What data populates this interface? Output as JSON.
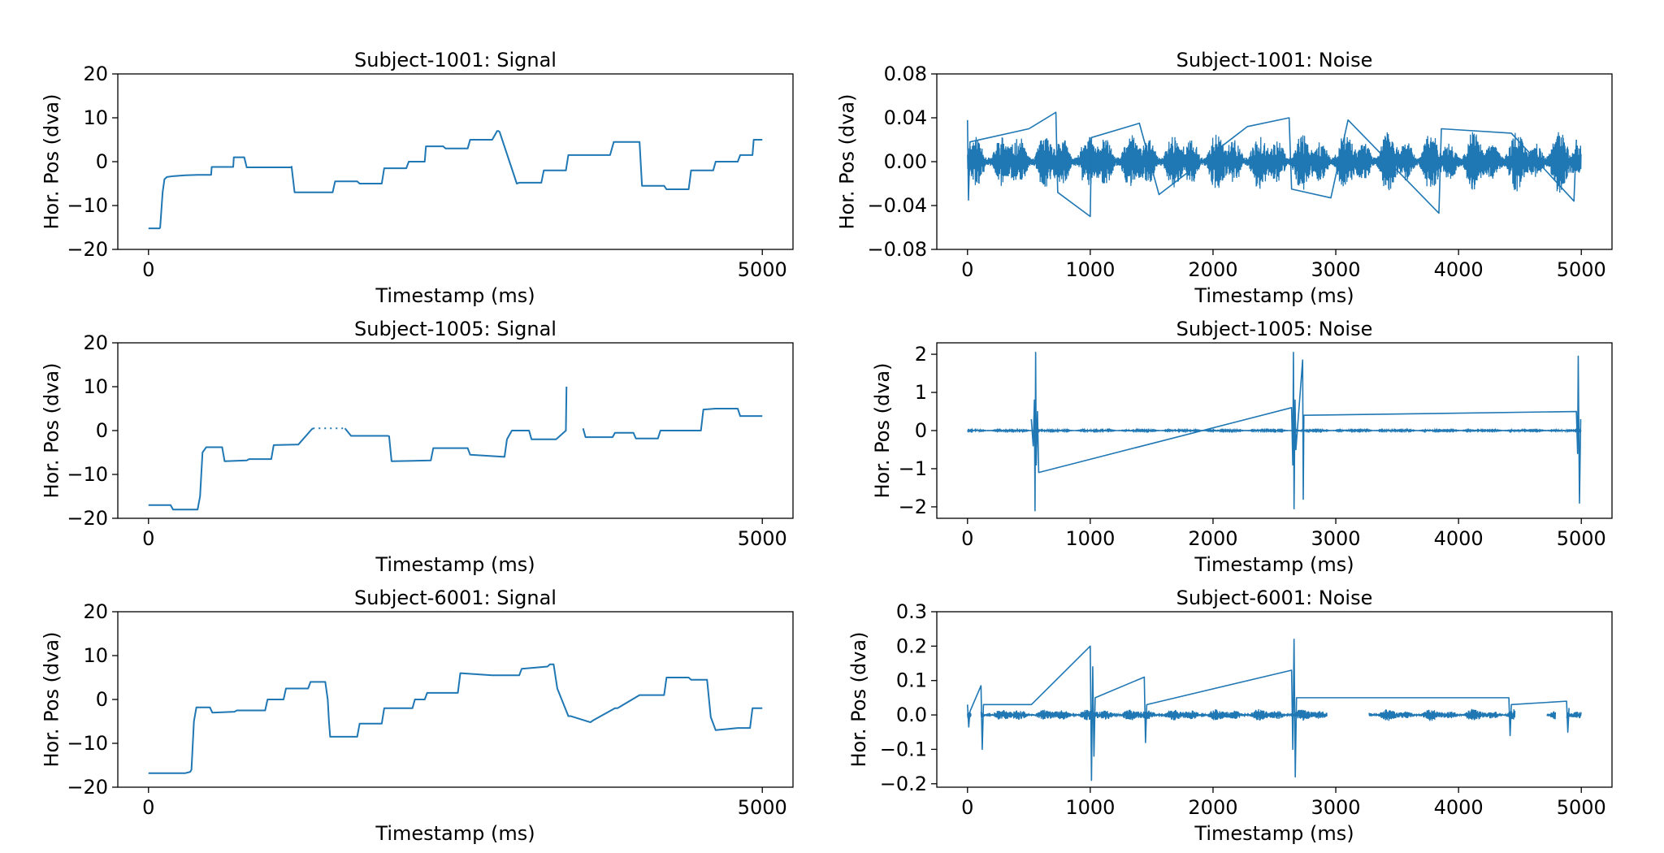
{
  "chart_data": [
    {
      "type": "line",
      "title": "Subject-1001: Signal",
      "xlabel": "Timestamp (ms)",
      "ylabel": "Hor. Pos (dva)",
      "xlim": [
        -250,
        5250
      ],
      "ylim": [
        -20,
        20
      ],
      "xticks": [
        0,
        5000
      ],
      "yticks": [
        -20,
        -10,
        0,
        10,
        20
      ],
      "yticklabels": [
        "−20",
        "−10",
        "0",
        "10",
        "20"
      ],
      "color": "#1f77b4",
      "grid": false,
      "series": [
        {
          "name": "signal",
          "x": [
            0,
            90,
            95,
            115,
            130,
            150,
            200,
            300,
            400,
            510,
            515,
            600,
            690,
            695,
            780,
            800,
            810,
            1165
          ],
          "y": [
            -15.2,
            -15.2,
            -15,
            -7,
            -4,
            -3.5,
            -3.3,
            -3.1,
            -3.0,
            -3.0,
            -1.2,
            -1.2,
            -1.2,
            1.0,
            1.0,
            -1.3,
            -1.3,
            -1.3
          ]
        },
        {
          "name": "signal",
          "x": [
            1165,
            1190,
            1500,
            1520,
            1700,
            1720,
            1900,
            1920,
            2100,
            2120,
            2250,
            2260,
            2400,
            2420,
            2600,
            2620,
            2800,
            2840,
            2850,
            2860,
            3000,
            3020,
            3200,
            3220,
            3400,
            3420,
            3760,
            3790,
            3800,
            4000,
            4020,
            4200,
            4220,
            4400,
            4420,
            4600,
            4620,
            4800,
            4820,
            4920,
            4930,
            5000
          ],
          "y": [
            -1,
            -7,
            -7,
            -4.5,
            -4.5,
            -5,
            -5,
            -1.5,
            -1.5,
            0,
            0,
            3.5,
            3.5,
            3,
            3,
            5,
            5,
            7,
            7,
            6.8,
            -5,
            -4.8,
            -4.8,
            -2,
            -2,
            1.5,
            1.5,
            4.5,
            4.5,
            4.5,
            -5.5,
            -5.5,
            -6.3,
            -6.3,
            -2,
            -2,
            0,
            0,
            1.5,
            1.5,
            5,
            5
          ]
        }
      ]
    },
    {
      "type": "line",
      "title": "Subject-1001: Noise",
      "xlabel": "Timestamp (ms)",
      "ylabel": "Hor. Pos (dva)",
      "xlim": [
        -250,
        5250
      ],
      "ylim": [
        -0.08,
        0.08
      ],
      "xticks": [
        0,
        1000,
        2000,
        3000,
        4000,
        5000
      ],
      "yticks": [
        -0.08,
        -0.04,
        0.0,
        0.04,
        0.08
      ],
      "yticklabels": [
        "−0.08",
        "−0.04",
        "0.00",
        "0.04",
        "0.08"
      ],
      "color": "#1f77b4",
      "grid": false,
      "noise": {
        "x_start": 0,
        "x_end": 5000,
        "base_amplitude": 0.011,
        "seed": 11
      },
      "series": [
        {
          "name": "noise spikes",
          "x": [
            0,
            8,
            20,
            500,
            720,
            735,
            1000,
            1010,
            1400,
            1560,
            2280,
            2620,
            2640,
            2960,
            3100,
            3840,
            3860,
            4430,
            4940,
            4960
          ],
          "y": [
            0.038,
            -0.035,
            0.018,
            0.03,
            0.045,
            -0.028,
            -0.05,
            0.022,
            0.035,
            -0.03,
            0.032,
            0.04,
            -0.025,
            -0.033,
            0.038,
            -0.047,
            0.03,
            0.026,
            -0.036,
            0.02
          ]
        }
      ]
    },
    {
      "type": "line",
      "title": "Subject-1005: Signal",
      "xlabel": "Timestamp (ms)",
      "ylabel": "Hor. Pos (dva)",
      "xlim": [
        -250,
        5250
      ],
      "ylim": [
        -20,
        20
      ],
      "xticks": [
        0,
        5000
      ],
      "yticks": [
        -20,
        -10,
        0,
        10,
        20
      ],
      "yticklabels": [
        "−20",
        "−10",
        "0",
        "10",
        "20"
      ],
      "color": "#1f77b4",
      "grid": false,
      "series": [
        {
          "name": "signal",
          "x": [
            0,
            180,
            200,
            400,
            420,
            440,
            470,
            600,
            620,
            800,
            820,
            1000,
            1020,
            1200,
            1220,
            1330,
            1340
          ],
          "y": [
            -17,
            -17,
            -18,
            -18,
            -15,
            -5,
            -3.8,
            -3.8,
            -7,
            -6.8,
            -6.5,
            -6.5,
            -3.3,
            -3.2,
            -3.2,
            0.3,
            0.5
          ]
        },
        {
          "name": "signal dotted",
          "x": [
            1340,
            1600
          ],
          "y": [
            0.5,
            0.5
          ],
          "dotted": true
        },
        {
          "name": "signal",
          "x": [
            1600,
            1650,
            1950,
            1960,
            1980,
            2300,
            2320,
            2600,
            2620,
            2900,
            2920,
            2960,
            3100,
            3120,
            3320,
            3340,
            3400,
            3405
          ],
          "y": [
            0.5,
            -1.2,
            -1.2,
            -1.3,
            -7,
            -6.8,
            -4,
            -4,
            -5.5,
            -6,
            -2,
            0,
            0,
            -2,
            -2,
            -1.5,
            0,
            10
          ]
        },
        {
          "name": "signal",
          "x": [
            3540,
            3560,
            3600,
            3780,
            3800,
            3950,
            3970,
            4150,
            4170,
            4500,
            4520,
            4620,
            4650,
            4800,
            4820,
            5000
          ],
          "y": [
            0.5,
            -1.5,
            -1.5,
            -1.5,
            -0.5,
            -0.5,
            -1.8,
            -1.8,
            0,
            0,
            4.8,
            5,
            5,
            5,
            3.3,
            3.3
          ]
        }
      ]
    },
    {
      "type": "line",
      "title": "Subject-1005: Noise",
      "xlabel": "Timestamp (ms)",
      "ylabel": "Hor. Pos (dva)",
      "xlim": [
        -250,
        5250
      ],
      "ylim": [
        -2.3,
        2.3
      ],
      "xticks": [
        0,
        1000,
        2000,
        3000,
        4000,
        5000
      ],
      "yticks": [
        -2,
        -1,
        0,
        1,
        2
      ],
      "yticklabels": [
        "−2",
        "−1",
        "0",
        "1",
        "2"
      ],
      "color": "#1f77b4",
      "grid": false,
      "noise": {
        "x_start": 0,
        "x_end": 5000,
        "base_amplitude": 0.012,
        "seed": 5
      },
      "series": [
        {
          "name": "noise spikes",
          "x": [
            520,
            535,
            545,
            550,
            555,
            560,
            570,
            580,
            2640,
            2650,
            2655,
            2660,
            2668,
            2675,
            2730,
            2735,
            2740,
            4960,
            4970,
            4975,
            4985,
            4995
          ],
          "y": [
            0.3,
            -0.4,
            0.8,
            -2.1,
            2.05,
            -0.9,
            0.5,
            -1.1,
            0.6,
            -0.9,
            2.05,
            -2.05,
            0.8,
            -0.5,
            1.85,
            -1.8,
            0.4,
            0.5,
            -0.6,
            1.95,
            -1.9,
            0.3
          ]
        }
      ]
    },
    {
      "type": "line",
      "title": "Subject-6001: Signal",
      "xlabel": "Timestamp (ms)",
      "ylabel": "Hor. Pos (dva)",
      "xlim": [
        -250,
        5250
      ],
      "ylim": [
        -20,
        20
      ],
      "xticks": [
        0,
        5000
      ],
      "yticks": [
        -20,
        -10,
        0,
        10,
        20
      ],
      "yticklabels": [
        "−20",
        "−10",
        "0",
        "10",
        "20"
      ],
      "color": "#1f77b4",
      "grid": false,
      "series": [
        {
          "name": "signal",
          "x": [
            0,
            300,
            340,
            350,
            370,
            390,
            500,
            520,
            700,
            720,
            950,
            970,
            1100,
            1120,
            1300,
            1320,
            1440,
            1460,
            1470,
            1480,
            1500,
            1700,
            1720,
            1900,
            1920,
            2150,
            2170,
            2250,
            2270,
            2520,
            2540,
            2800,
            2820,
            3020,
            3040,
            3250,
            3270,
            3300,
            3330,
            3420,
            3440,
            3600,
            3620,
            3800,
            3820,
            4000,
            4020,
            4200,
            4220,
            4400,
            4420,
            4550,
            4580,
            4620,
            4800,
            4820,
            4900,
            4920,
            5000
          ],
          "y": [
            -16.8,
            -16.8,
            -16.5,
            -16,
            -5,
            -1.8,
            -1.8,
            -3,
            -2.8,
            -2.5,
            -2.5,
            0,
            0,
            2.5,
            2.5,
            4,
            4,
            0,
            -5,
            -8.5,
            -8.5,
            -8.5,
            -5.5,
            -5.5,
            -2,
            -2,
            0,
            0,
            1.5,
            1.5,
            6,
            5.5,
            5.5,
            5.5,
            7,
            7.5,
            8,
            8,
            2.5,
            -3.8,
            -3.8,
            -5.2,
            -4.8,
            -2,
            -2,
            1,
            1,
            1,
            5,
            5,
            4.5,
            4.5,
            -4,
            -7,
            -6.5,
            -6.5,
            -6.5,
            -2,
            -2
          ]
        }
      ]
    },
    {
      "type": "line",
      "title": "Subject-6001: Noise",
      "xlabel": "Timestamp (ms)",
      "ylabel": "Hor. Pos (dva)",
      "xlim": [
        -250,
        5250
      ],
      "ylim": [
        -0.21,
        0.3
      ],
      "xticks": [
        0,
        1000,
        2000,
        3000,
        4000,
        5000
      ],
      "yticks": [
        -0.2,
        -0.1,
        0.0,
        0.1,
        0.2,
        0.3
      ],
      "yticklabels": [
        "−0.2",
        "−0.1",
        "0.0",
        "0.1",
        "0.2",
        "0.3"
      ],
      "color": "#1f77b4",
      "grid": false,
      "noise": {
        "x_start": 0,
        "x_end": 5000,
        "base_amplitude": 0.007,
        "seed": 17,
        "gaps": [
          [
            30,
            110
          ],
          [
            2930,
            3270
          ],
          [
            4460,
            4720
          ],
          [
            4790,
            4880
          ]
        ],
        "segments_extra": [
          [
            4720,
            4790
          ]
        ]
      },
      "series": [
        {
          "name": "noise spikes",
          "x": [
            0,
            10,
            20,
            110,
            120,
            130,
            520,
            1000,
            1010,
            1020,
            1030,
            1040,
            1440,
            1450,
            1460,
            2640,
            2650,
            2660,
            2670,
            2680,
            4410,
            4420,
            4430,
            4880,
            4890,
            4900
          ],
          "y": [
            0.03,
            -0.035,
            0.01,
            0.085,
            -0.1,
            0.03,
            0.03,
            0.2,
            -0.19,
            0.14,
            -0.12,
            0.05,
            0.11,
            -0.08,
            0.03,
            0.13,
            -0.1,
            0.22,
            -0.18,
            0.05,
            0.05,
            -0.06,
            0.03,
            0.04,
            -0.05,
            0.02
          ]
        }
      ]
    }
  ]
}
